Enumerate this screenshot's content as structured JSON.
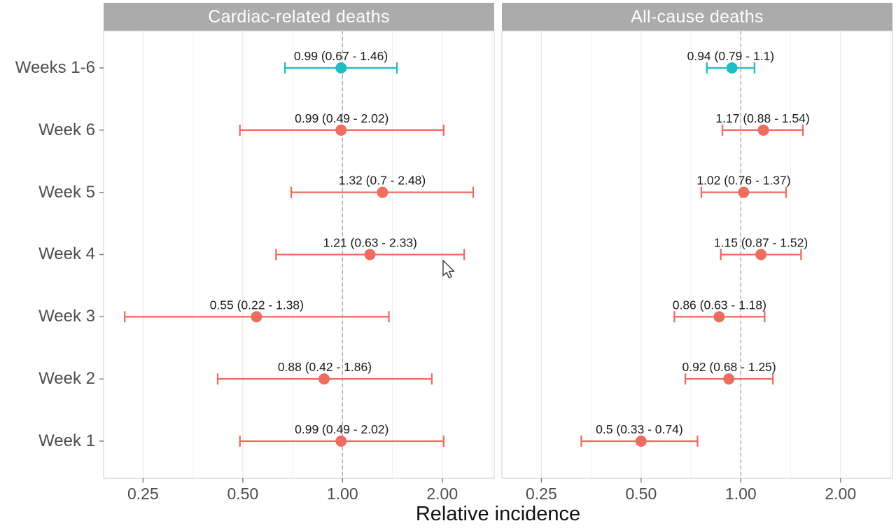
{
  "figure": {
    "xlabel": "Relative incidence"
  },
  "colors": {
    "pooled": "#1ebdc3",
    "weekly": "#ee6c60",
    "header_bg": "#ababab",
    "header_text": "#ffffff",
    "axis_text": "#4d4d4d",
    "annotation_text": "#1a1a1a",
    "grid_major": "#e4e4e4",
    "grid_minor": "#f1f1f1",
    "panel_border": "#cccccc",
    "ref_line": "#a6a6a6",
    "tick_mark": "#777777"
  },
  "chart_data": {
    "type": "scatter",
    "subtype": "forest-plot-with-error-bars",
    "x_axis": {
      "scale": "log2",
      "min": 0.19,
      "max": 2.87,
      "major_ticks": [
        0.25,
        0.5,
        1.0,
        2.0
      ],
      "tick_labels": [
        "0.25",
        "0.50",
        "1.00",
        "2.00"
      ],
      "minor_ticks": [
        0.354,
        0.707,
        1.414,
        2.828
      ],
      "reference_line": 1.0,
      "label": "Relative incidence"
    },
    "categories": [
      "Weeks 1-6",
      "Week 6",
      "Week 5",
      "Week 4",
      "Week 3",
      "Week 2",
      "Week 1"
    ],
    "legend": "none",
    "grid": "vertical-only",
    "panels": [
      {
        "title": "Cardiac-related deaths",
        "rows": [
          {
            "category": "Weeks 1-6",
            "estimate": 0.99,
            "ci_low": 0.67,
            "ci_high": 1.46,
            "label": "0.99 (0.67 - 1.46)",
            "group": "pooled"
          },
          {
            "category": "Week 6",
            "estimate": 0.99,
            "ci_low": 0.49,
            "ci_high": 2.02,
            "label": "0.99 (0.49 - 2.02)",
            "group": "weekly"
          },
          {
            "category": "Week 5",
            "estimate": 1.32,
            "ci_low": 0.7,
            "ci_high": 2.48,
            "label": "1.32 (0.7 - 2.48)",
            "group": "weekly"
          },
          {
            "category": "Week 4",
            "estimate": 1.21,
            "ci_low": 0.63,
            "ci_high": 2.33,
            "label": "1.21 (0.63 - 2.33)",
            "group": "weekly"
          },
          {
            "category": "Week 3",
            "estimate": 0.55,
            "ci_low": 0.22,
            "ci_high": 1.38,
            "label": "0.55 (0.22 - 1.38)",
            "group": "weekly"
          },
          {
            "category": "Week 2",
            "estimate": 0.88,
            "ci_low": 0.42,
            "ci_high": 1.86,
            "label": "0.88 (0.42 - 1.86)",
            "group": "weekly"
          },
          {
            "category": "Week 1",
            "estimate": 0.99,
            "ci_low": 0.49,
            "ci_high": 2.02,
            "label": "0.99 (0.49 - 2.02)",
            "group": "weekly"
          }
        ]
      },
      {
        "title": "All-cause deaths",
        "rows": [
          {
            "category": "Weeks 1-6",
            "estimate": 0.94,
            "ci_low": 0.79,
            "ci_high": 1.1,
            "label": "0.94 (0.79 - 1.1)",
            "group": "pooled"
          },
          {
            "category": "Week 6",
            "estimate": 1.17,
            "ci_low": 0.88,
            "ci_high": 1.54,
            "label": "1.17 (0.88 - 1.54)",
            "group": "weekly"
          },
          {
            "category": "Week 5",
            "estimate": 1.02,
            "ci_low": 0.76,
            "ci_high": 1.37,
            "label": "1.02 (0.76 - 1.37)",
            "group": "weekly"
          },
          {
            "category": "Week 4",
            "estimate": 1.15,
            "ci_low": 0.87,
            "ci_high": 1.52,
            "label": "1.15 (0.87 - 1.52)",
            "group": "weekly"
          },
          {
            "category": "Week 3",
            "estimate": 0.86,
            "ci_low": 0.63,
            "ci_high": 1.18,
            "label": "0.86 (0.63 - 1.18)",
            "group": "weekly"
          },
          {
            "category": "Week 2",
            "estimate": 0.92,
            "ci_low": 0.68,
            "ci_high": 1.25,
            "label": "0.92 (0.68 - 1.25)",
            "group": "weekly"
          },
          {
            "category": "Week 1",
            "estimate": 0.5,
            "ci_low": 0.33,
            "ci_high": 0.74,
            "label": "0.5 (0.33 - 0.74)",
            "group": "weekly"
          }
        ]
      }
    ]
  }
}
